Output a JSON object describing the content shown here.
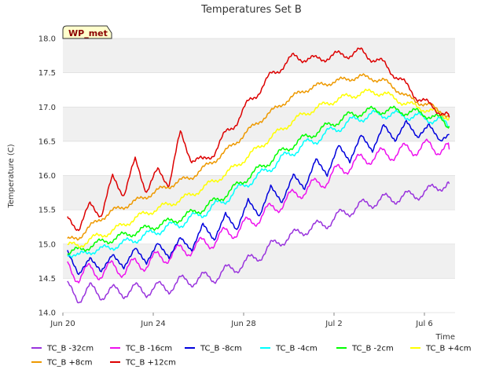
{
  "chart_data": {
    "type": "line",
    "title": "Temperatures Set B",
    "xlabel": "Time",
    "ylabel": "Temperature (C)",
    "badge": "WP_met",
    "ylim": [
      14.0,
      18.0
    ],
    "xlim": [
      "2023-06-20",
      "2023-07-08"
    ],
    "y_ticks": [
      "14.0",
      "14.5",
      "15.0",
      "15.5",
      "16.0",
      "16.5",
      "17.0",
      "17.5",
      "18.0"
    ],
    "x_ticks": [
      {
        "label": "Jun 20",
        "day": 0
      },
      {
        "label": "Jun 24",
        "day": 4
      },
      {
        "label": "Jun 28",
        "day": 8
      },
      {
        "label": "Jul 2",
        "day": 12
      },
      {
        "label": "Jul 6",
        "day": 16
      }
    ],
    "grid": "horizontal bands",
    "legend_position": "bottom",
    "series": [
      {
        "name": "TC_B -32cm",
        "color": "#9933dd",
        "points": [
          [
            0.2,
            14.38
          ],
          [
            0.7,
            14.2
          ],
          [
            1.2,
            14.36
          ],
          [
            1.7,
            14.25
          ],
          [
            2.2,
            14.33
          ],
          [
            2.7,
            14.28
          ],
          [
            3.2,
            14.36
          ],
          [
            3.7,
            14.3
          ],
          [
            4.2,
            14.38
          ],
          [
            4.7,
            14.35
          ],
          [
            5.2,
            14.47
          ],
          [
            5.7,
            14.45
          ],
          [
            6.2,
            14.52
          ],
          [
            6.7,
            14.5
          ],
          [
            7.2,
            14.62
          ],
          [
            7.7,
            14.65
          ],
          [
            8.2,
            14.76
          ],
          [
            8.7,
            14.82
          ],
          [
            9.2,
            14.97
          ],
          [
            9.7,
            15.05
          ],
          [
            10.2,
            15.13
          ],
          [
            10.7,
            15.2
          ],
          [
            11.2,
            15.26
          ],
          [
            11.7,
            15.3
          ],
          [
            12.2,
            15.42
          ],
          [
            12.7,
            15.48
          ],
          [
            13.2,
            15.57
          ],
          [
            13.7,
            15.6
          ],
          [
            14.2,
            15.66
          ],
          [
            14.7,
            15.66
          ],
          [
            15.2,
            15.7
          ],
          [
            15.7,
            15.72
          ],
          [
            16.2,
            15.78
          ],
          [
            16.7,
            15.85
          ],
          [
            17.1,
            15.88
          ]
        ]
      },
      {
        "name": "TC_B -16cm",
        "color": "#ee11ee",
        "points": [
          [
            0.2,
            14.68
          ],
          [
            0.7,
            14.52
          ],
          [
            1.2,
            14.62
          ],
          [
            1.7,
            14.58
          ],
          [
            2.2,
            14.66
          ],
          [
            2.7,
            14.62
          ],
          [
            3.2,
            14.7
          ],
          [
            3.7,
            14.72
          ],
          [
            4.2,
            14.8
          ],
          [
            4.7,
            14.83
          ],
          [
            5.2,
            14.9
          ],
          [
            5.7,
            14.94
          ],
          [
            6.2,
            15.0
          ],
          [
            6.7,
            15.05
          ],
          [
            7.2,
            15.15
          ],
          [
            7.7,
            15.2
          ],
          [
            8.2,
            15.3
          ],
          [
            8.7,
            15.4
          ],
          [
            9.2,
            15.5
          ],
          [
            9.7,
            15.6
          ],
          [
            10.2,
            15.7
          ],
          [
            10.7,
            15.8
          ],
          [
            11.2,
            15.86
          ],
          [
            11.7,
            15.95
          ],
          [
            12.2,
            16.07
          ],
          [
            12.7,
            16.15
          ],
          [
            13.2,
            16.22
          ],
          [
            13.7,
            16.28
          ],
          [
            14.2,
            16.3
          ],
          [
            14.7,
            16.33
          ],
          [
            15.2,
            16.37
          ],
          [
            15.7,
            16.4
          ],
          [
            16.2,
            16.42
          ],
          [
            16.7,
            16.4
          ],
          [
            17.1,
            16.38
          ]
        ]
      },
      {
        "name": "TC_B -8cm",
        "color": "#0000dd",
        "points": [
          [
            0.2,
            14.9
          ],
          [
            0.7,
            14.55
          ],
          [
            1.2,
            14.8
          ],
          [
            1.7,
            14.6
          ],
          [
            2.2,
            14.85
          ],
          [
            2.7,
            14.65
          ],
          [
            3.2,
            14.95
          ],
          [
            3.7,
            14.72
          ],
          [
            4.2,
            15.02
          ],
          [
            4.7,
            14.8
          ],
          [
            5.2,
            15.1
          ],
          [
            5.7,
            14.9
          ],
          [
            6.2,
            15.3
          ],
          [
            6.7,
            15.05
          ],
          [
            7.2,
            15.45
          ],
          [
            7.7,
            15.2
          ],
          [
            8.2,
            15.65
          ],
          [
            8.7,
            15.4
          ],
          [
            9.2,
            15.85
          ],
          [
            9.7,
            15.6
          ],
          [
            10.2,
            16.02
          ],
          [
            10.7,
            15.8
          ],
          [
            11.2,
            16.25
          ],
          [
            11.7,
            16.0
          ],
          [
            12.2,
            16.45
          ],
          [
            12.7,
            16.2
          ],
          [
            13.2,
            16.6
          ],
          [
            13.7,
            16.35
          ],
          [
            14.2,
            16.75
          ],
          [
            14.7,
            16.5
          ],
          [
            15.2,
            16.8
          ],
          [
            15.7,
            16.55
          ],
          [
            16.2,
            16.75
          ],
          [
            16.7,
            16.5
          ],
          [
            17.1,
            16.6
          ]
        ]
      },
      {
        "name": "TC_B -4cm",
        "color": "#00ffff",
        "points": [
          [
            0.2,
            14.9
          ],
          [
            0.7,
            14.8
          ],
          [
            1.2,
            14.92
          ],
          [
            1.7,
            14.9
          ],
          [
            2.2,
            14.98
          ],
          [
            2.7,
            15.0
          ],
          [
            3.2,
            15.08
          ],
          [
            3.7,
            15.12
          ],
          [
            4.2,
            15.2
          ],
          [
            4.7,
            15.25
          ],
          [
            5.2,
            15.3
          ],
          [
            5.7,
            15.38
          ],
          [
            6.2,
            15.45
          ],
          [
            6.7,
            15.55
          ],
          [
            7.2,
            15.65
          ],
          [
            7.7,
            15.78
          ],
          [
            8.2,
            15.9
          ],
          [
            8.7,
            16.0
          ],
          [
            9.2,
            16.12
          ],
          [
            9.7,
            16.25
          ],
          [
            10.2,
            16.35
          ],
          [
            10.7,
            16.45
          ],
          [
            11.2,
            16.52
          ],
          [
            11.7,
            16.62
          ],
          [
            12.2,
            16.7
          ],
          [
            12.7,
            16.78
          ],
          [
            13.2,
            16.85
          ],
          [
            13.7,
            16.88
          ],
          [
            14.2,
            16.9
          ],
          [
            14.7,
            16.88
          ],
          [
            15.2,
            16.88
          ],
          [
            15.7,
            16.85
          ],
          [
            16.2,
            16.83
          ],
          [
            16.7,
            16.8
          ],
          [
            17.1,
            16.72
          ]
        ]
      },
      {
        "name": "TC_B -2cm",
        "color": "#00ff00",
        "points": [
          [
            0.2,
            14.88
          ],
          [
            0.7,
            14.9
          ],
          [
            1.2,
            14.98
          ],
          [
            1.7,
            15.02
          ],
          [
            2.2,
            15.08
          ],
          [
            2.7,
            15.12
          ],
          [
            3.2,
            15.18
          ],
          [
            3.7,
            15.22
          ],
          [
            4.2,
            15.28
          ],
          [
            4.7,
            15.32
          ],
          [
            5.2,
            15.38
          ],
          [
            5.7,
            15.45
          ],
          [
            6.2,
            15.52
          ],
          [
            6.7,
            15.62
          ],
          [
            7.2,
            15.72
          ],
          [
            7.7,
            15.85
          ],
          [
            8.2,
            15.98
          ],
          [
            8.7,
            16.1
          ],
          [
            9.2,
            16.22
          ],
          [
            9.7,
            16.35
          ],
          [
            10.2,
            16.45
          ],
          [
            10.7,
            16.55
          ],
          [
            11.2,
            16.63
          ],
          [
            11.7,
            16.72
          ],
          [
            12.2,
            16.8
          ],
          [
            12.7,
            16.88
          ],
          [
            13.2,
            16.92
          ],
          [
            13.7,
            16.95
          ],
          [
            14.2,
            16.95
          ],
          [
            14.7,
            16.95
          ],
          [
            15.2,
            16.93
          ],
          [
            15.7,
            16.92
          ],
          [
            16.2,
            16.88
          ],
          [
            16.7,
            16.82
          ],
          [
            17.1,
            16.72
          ]
        ]
      },
      {
        "name": "TC_B +4cm",
        "color": "#ffff00",
        "points": [
          [
            0.2,
            15.0
          ],
          [
            0.7,
            14.96
          ],
          [
            1.2,
            15.08
          ],
          [
            1.7,
            15.12
          ],
          [
            2.2,
            15.2
          ],
          [
            2.7,
            15.28
          ],
          [
            3.2,
            15.38
          ],
          [
            3.7,
            15.45
          ],
          [
            4.2,
            15.52
          ],
          [
            4.7,
            15.58
          ],
          [
            5.2,
            15.65
          ],
          [
            5.7,
            15.72
          ],
          [
            6.2,
            15.82
          ],
          [
            6.7,
            15.92
          ],
          [
            7.2,
            16.02
          ],
          [
            7.7,
            16.15
          ],
          [
            8.2,
            16.28
          ],
          [
            8.7,
            16.42
          ],
          [
            9.2,
            16.55
          ],
          [
            9.7,
            16.68
          ],
          [
            10.2,
            16.8
          ],
          [
            10.7,
            16.9
          ],
          [
            11.2,
            16.98
          ],
          [
            11.7,
            17.05
          ],
          [
            12.2,
            17.12
          ],
          [
            12.7,
            17.16
          ],
          [
            13.2,
            17.2
          ],
          [
            13.7,
            17.22
          ],
          [
            14.2,
            17.2
          ],
          [
            14.7,
            17.12
          ],
          [
            15.2,
            17.05
          ],
          [
            15.7,
            17.0
          ],
          [
            16.2,
            16.95
          ],
          [
            16.7,
            16.9
          ],
          [
            17.1,
            16.85
          ]
        ]
      },
      {
        "name": "TC_B +8cm",
        "color": "#ee9900",
        "points": [
          [
            0.2,
            15.05
          ],
          [
            0.7,
            15.1
          ],
          [
            1.2,
            15.25
          ],
          [
            1.7,
            15.38
          ],
          [
            2.2,
            15.48
          ],
          [
            2.7,
            15.55
          ],
          [
            3.2,
            15.62
          ],
          [
            3.7,
            15.7
          ],
          [
            4.2,
            15.78
          ],
          [
            4.7,
            15.85
          ],
          [
            5.2,
            15.92
          ],
          [
            5.7,
            15.98
          ],
          [
            6.2,
            16.1
          ],
          [
            6.7,
            16.22
          ],
          [
            7.2,
            16.35
          ],
          [
            7.7,
            16.5
          ],
          [
            8.2,
            16.65
          ],
          [
            8.7,
            16.8
          ],
          [
            9.2,
            16.92
          ],
          [
            9.7,
            17.05
          ],
          [
            10.2,
            17.15
          ],
          [
            10.7,
            17.25
          ],
          [
            11.2,
            17.3
          ],
          [
            11.7,
            17.35
          ],
          [
            12.2,
            17.38
          ],
          [
            12.7,
            17.42
          ],
          [
            13.2,
            17.44
          ],
          [
            13.7,
            17.42
          ],
          [
            14.2,
            17.38
          ],
          [
            14.7,
            17.28
          ],
          [
            15.2,
            17.15
          ],
          [
            15.7,
            17.08
          ],
          [
            16.2,
            17.02
          ],
          [
            16.7,
            16.95
          ],
          [
            17.1,
            16.85
          ]
        ]
      },
      {
        "name": "TC_B +12cm",
        "color": "#dd0000",
        "points": [
          [
            0.2,
            15.35
          ],
          [
            0.7,
            15.25
          ],
          [
            1.2,
            15.55
          ],
          [
            1.7,
            15.45
          ],
          [
            2.2,
            15.95
          ],
          [
            2.7,
            15.75
          ],
          [
            3.2,
            16.2
          ],
          [
            3.7,
            15.8
          ],
          [
            4.2,
            16.05
          ],
          [
            4.7,
            15.9
          ],
          [
            5.2,
            16.6
          ],
          [
            5.7,
            16.25
          ],
          [
            6.2,
            16.2
          ],
          [
            6.7,
            16.35
          ],
          [
            7.2,
            16.6
          ],
          [
            7.7,
            16.8
          ],
          [
            8.2,
            17.05
          ],
          [
            8.7,
            17.25
          ],
          [
            9.2,
            17.45
          ],
          [
            9.7,
            17.6
          ],
          [
            10.2,
            17.72
          ],
          [
            10.7,
            17.72
          ],
          [
            11.2,
            17.68
          ],
          [
            11.7,
            17.74
          ],
          [
            12.2,
            17.75
          ],
          [
            12.7,
            17.78
          ],
          [
            13.2,
            17.8
          ],
          [
            13.7,
            17.72
          ],
          [
            14.2,
            17.62
          ],
          [
            14.7,
            17.48
          ],
          [
            15.2,
            17.3
          ],
          [
            15.7,
            17.15
          ],
          [
            16.2,
            17.02
          ],
          [
            16.7,
            16.95
          ],
          [
            17.1,
            16.85
          ]
        ]
      }
    ]
  }
}
